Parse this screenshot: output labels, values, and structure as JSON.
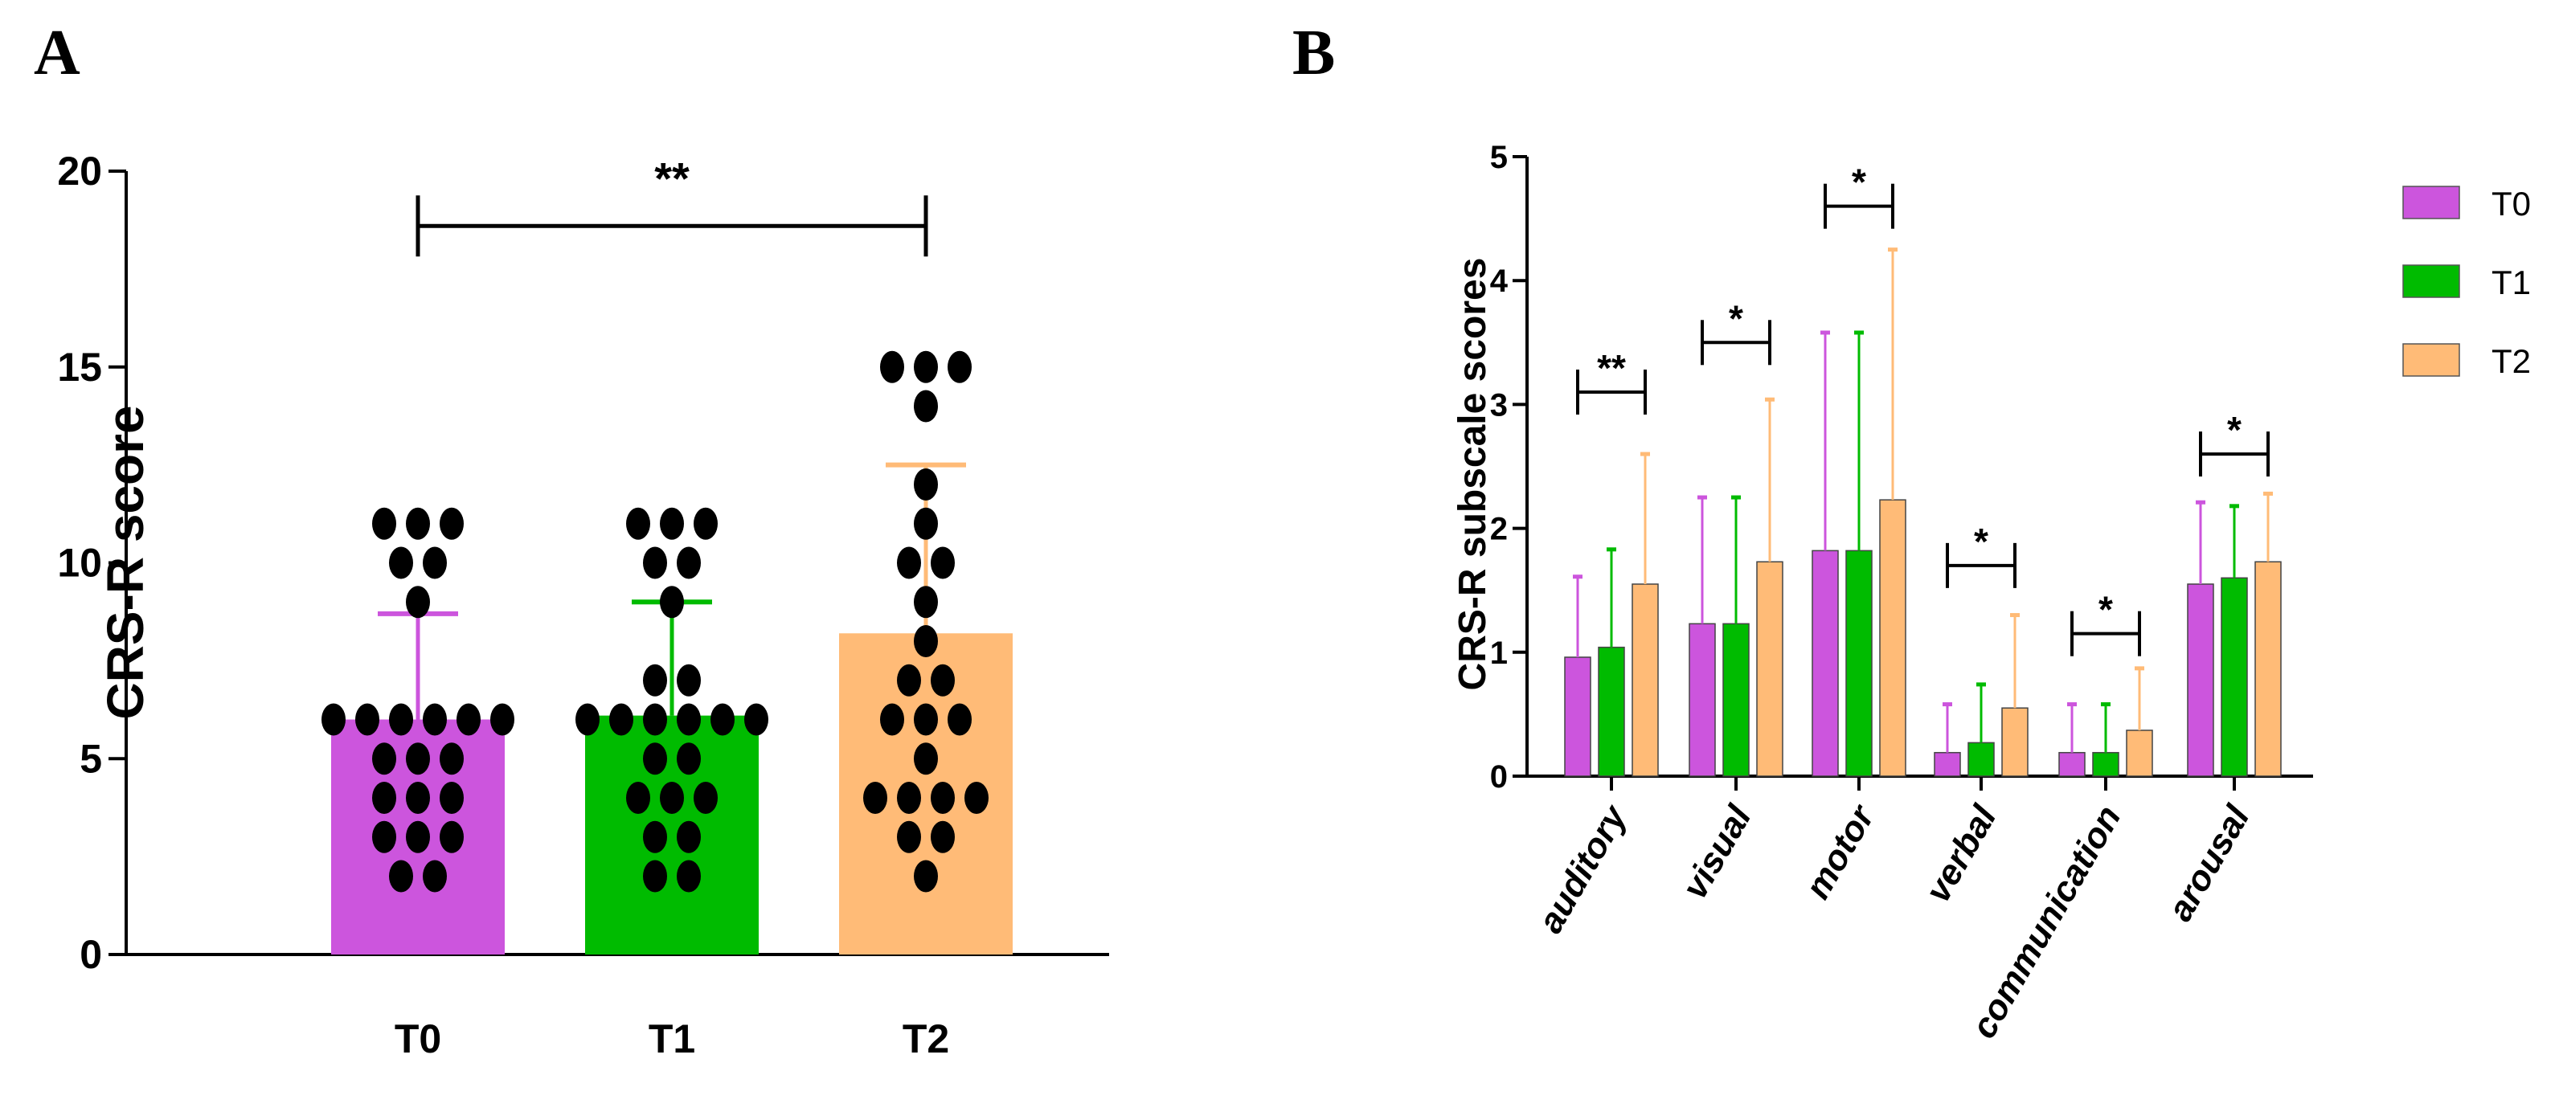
{
  "chart_data": [
    {
      "panel": "A",
      "type": "bar",
      "ylabel": "CRS-R score",
      "xlabel": "",
      "ylim": [
        0,
        20
      ],
      "yticks": [
        0,
        5,
        10,
        15,
        20
      ],
      "categories": [
        "T0",
        "T1",
        "T2"
      ],
      "values": [
        6.0,
        6.1,
        8.2
      ],
      "error_upper": [
        8.7,
        9.0,
        12.5
      ],
      "colors": [
        "#cc55dd",
        "#00bb00",
        "#ffbb77"
      ],
      "points": [
        [
          11,
          11,
          11,
          10,
          10,
          9,
          6,
          6,
          6,
          6,
          6,
          6,
          5,
          5,
          5,
          4,
          4,
          4,
          3,
          3,
          3,
          2,
          2
        ],
        [
          11,
          11,
          11,
          10,
          10,
          9,
          7,
          7,
          6,
          6,
          6,
          6,
          6,
          6,
          5,
          5,
          4,
          4,
          4,
          3,
          3,
          2,
          2
        ],
        [
          15,
          15,
          15,
          14,
          12,
          11,
          10,
          10,
          9,
          8,
          7,
          7,
          6,
          6,
          6,
          5,
          4,
          4,
          4,
          4,
          3,
          3,
          2
        ]
      ],
      "significance": [
        {
          "from": "T0",
          "to": "T2",
          "label": "**",
          "y": 18.6
        }
      ]
    },
    {
      "panel": "B",
      "type": "bar",
      "ylabel": "CRS-R subscale scores",
      "xlabel": "",
      "ylim": [
        0,
        5
      ],
      "yticks": [
        0,
        1,
        2,
        3,
        4,
        5
      ],
      "categories": [
        "auditory",
        "visual",
        "motor",
        "verbal",
        "communication",
        "arousal"
      ],
      "series": [
        {
          "name": "T0",
          "color": "#cc55dd",
          "values": [
            0.96,
            1.23,
            1.82,
            0.19,
            0.19,
            1.55
          ],
          "error_upper": [
            1.61,
            2.25,
            3.58,
            0.58,
            0.58,
            2.21
          ]
        },
        {
          "name": "T1",
          "color": "#00bb00",
          "values": [
            1.04,
            1.23,
            1.82,
            0.27,
            0.19,
            1.6
          ],
          "error_upper": [
            1.83,
            2.25,
            3.58,
            0.74,
            0.58,
            2.18
          ]
        },
        {
          "name": "T2",
          "color": "#ffbb77",
          "values": [
            1.55,
            1.73,
            2.23,
            0.55,
            0.37,
            1.73
          ],
          "error_upper": [
            2.6,
            3.04,
            4.25,
            1.3,
            0.87,
            2.28
          ]
        }
      ],
      "significance": [
        {
          "category": "auditory",
          "label": "**",
          "y": 3.1
        },
        {
          "category": "visual",
          "label": "*",
          "y": 3.5
        },
        {
          "category": "motor",
          "label": "*",
          "y": 4.6
        },
        {
          "category": "verbal",
          "label": "*",
          "y": 1.7
        },
        {
          "category": "communication",
          "label": "*",
          "y": 1.15
        },
        {
          "category": "arousal",
          "label": "*",
          "y": 2.6
        }
      ],
      "legend": "right"
    }
  ]
}
